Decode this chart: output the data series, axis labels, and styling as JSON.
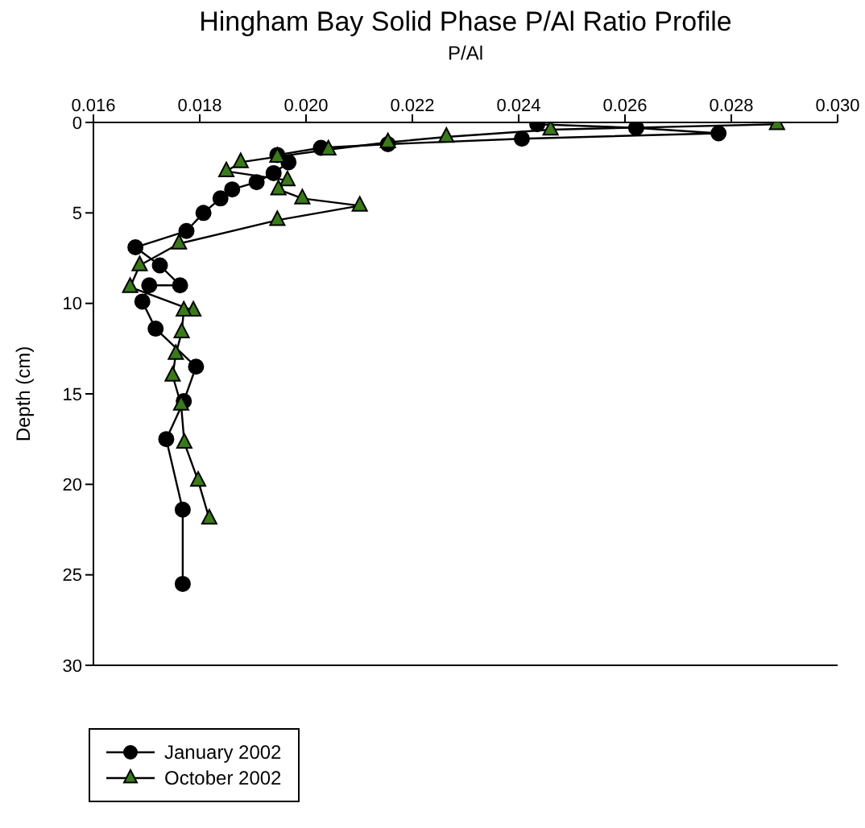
{
  "chart_data": {
    "type": "line",
    "title": "Hingham Bay Solid Phase P/Al Ratio Profile",
    "xlabel": "P/Al",
    "ylabel": "Depth (cm)",
    "xlim": [
      0.016,
      0.03
    ],
    "xticks": [
      {
        "value": 0.016,
        "label": "0.016"
      },
      {
        "value": 0.018,
        "label": "0.018"
      },
      {
        "value": 0.02,
        "label": "0.020"
      },
      {
        "value": 0.022,
        "label": "0.022"
      },
      {
        "value": 0.024,
        "label": "0.024"
      },
      {
        "value": 0.026,
        "label": "0.026"
      },
      {
        "value": 0.028,
        "label": "0.028"
      },
      {
        "value": 0.03,
        "label": "0.030"
      }
    ],
    "ylim": [
      30,
      0
    ],
    "yticks": [
      0,
      5,
      10,
      15,
      20,
      25,
      30
    ],
    "grid": false,
    "legend": "bottom left",
    "series": [
      {
        "name": "January 2002",
        "color": "#000000",
        "marker": "circle",
        "x": [
          0.02435,
          0.02621,
          0.02776,
          0.02406,
          0.02154,
          0.02028,
          0.01946,
          0.01967,
          0.01939,
          0.01907,
          0.01861,
          0.01839,
          0.01807,
          0.01775,
          0.01679,
          0.01725,
          0.01763,
          0.01705,
          0.01692,
          0.01717,
          0.01793,
          0.0177,
          0.01737,
          0.01768,
          0.01768
        ],
        "values": [
          0.1,
          0.3,
          0.6,
          0.9,
          1.2,
          1.4,
          1.8,
          2.2,
          2.8,
          3.3,
          3.7,
          4.2,
          5.0,
          6.0,
          6.9,
          7.9,
          9.0,
          9.0,
          9.9,
          11.4,
          13.5,
          15.4,
          17.5,
          21.4,
          25.5
        ]
      },
      {
        "name": "October 2002",
        "color": "#3a7a1a",
        "marker": "triangle",
        "x": [
          0.02886,
          0.0246,
          0.02264,
          0.02154,
          0.02042,
          0.01946,
          0.01877,
          0.0185,
          0.01965,
          0.01948,
          0.01993,
          0.02101,
          0.01946,
          0.01761,
          0.01687,
          0.01669,
          0.01788,
          0.0177,
          0.01766,
          0.01755,
          0.01749,
          0.01765,
          0.01771,
          0.01797,
          0.01818
        ],
        "values": [
          0.1,
          0.4,
          0.8,
          1.1,
          1.5,
          1.9,
          2.2,
          2.7,
          3.2,
          3.7,
          4.2,
          4.6,
          5.4,
          6.7,
          7.9,
          9.1,
          10.4,
          10.4,
          11.6,
          12.8,
          14.0,
          15.6,
          17.7,
          19.8,
          21.9
        ]
      }
    ]
  }
}
